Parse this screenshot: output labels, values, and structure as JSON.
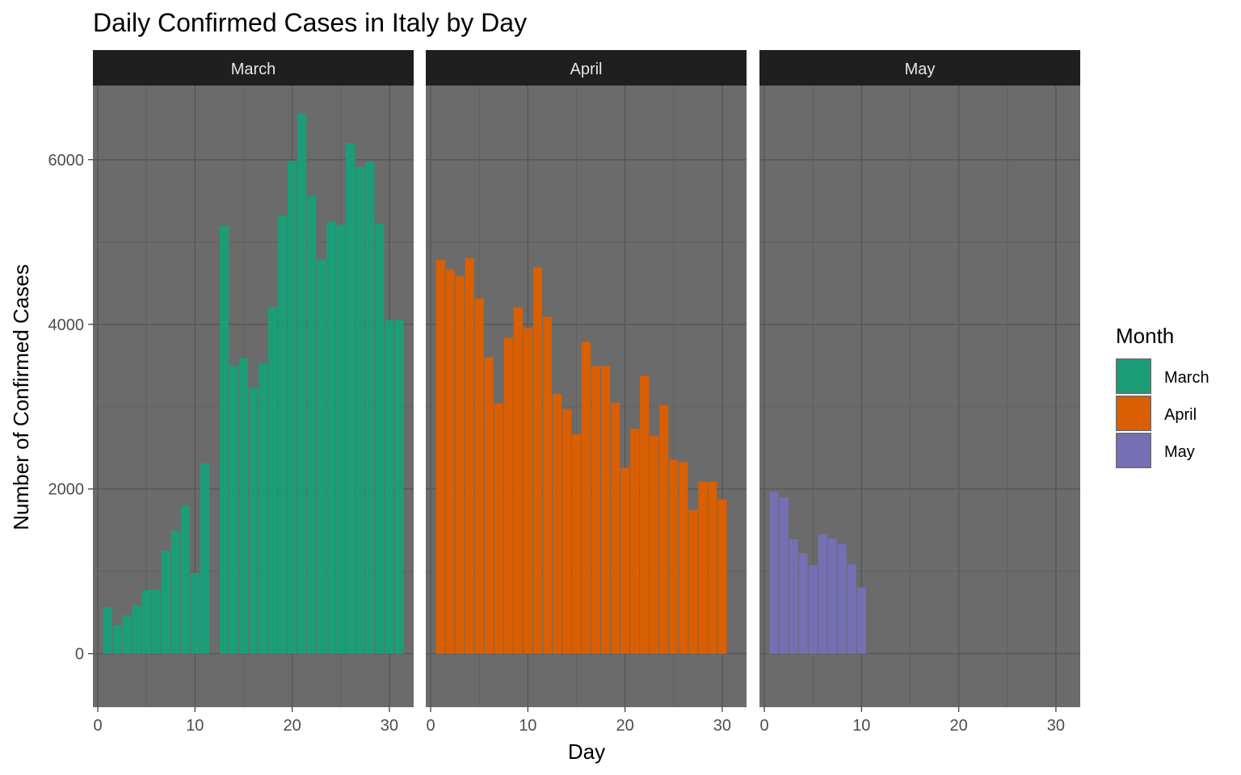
{
  "chart_data": {
    "type": "bar",
    "title": "Daily Confirmed Cases in Italy by Day",
    "xlabel": "Day",
    "ylabel": "Number of Confirmed Cases",
    "xlim": [
      -0.5,
      32.5
    ],
    "ylim": [
      -650,
      6900
    ],
    "x_ticks": [
      0,
      10,
      20,
      30
    ],
    "y_ticks": [
      0,
      2000,
      4000,
      6000
    ],
    "grid": true,
    "legend": {
      "title": "Month",
      "position": "right",
      "entries": [
        "March",
        "April",
        "May"
      ]
    },
    "colors": {
      "March": "#1b9e77",
      "April": "#d95f02",
      "May": "#7570b3",
      "panel_background": "#6b6b6b",
      "strip_background": "#1f1f1f"
    },
    "panels": [
      {
        "name": "March",
        "days": [
          1,
          2,
          3,
          4,
          5,
          6,
          7,
          8,
          9,
          10,
          11,
          12,
          13,
          14,
          15,
          16,
          17,
          18,
          19,
          20,
          21,
          22,
          23,
          24,
          25,
          26,
          27,
          28,
          29,
          30,
          31
        ],
        "values": [
          566,
          342,
          466,
          587,
          769,
          778,
          1247,
          1492,
          1797,
          977,
          2313,
          0,
          5198,
          3497,
          3590,
          3233,
          3526,
          4207,
          5322,
          5986,
          6557,
          5560,
          4789,
          5249,
          5210,
          6203,
          5909,
          5974,
          5217,
          4050,
          4053
        ]
      },
      {
        "name": "April",
        "days": [
          1,
          2,
          3,
          4,
          5,
          6,
          7,
          8,
          9,
          10,
          11,
          12,
          13,
          14,
          15,
          16,
          17,
          18,
          19,
          20,
          21,
          22,
          23,
          24,
          25,
          26,
          27,
          28,
          29,
          30
        ],
        "values": [
          4782,
          4668,
          4585,
          4805,
          4316,
          3599,
          3039,
          3836,
          4204,
          3951,
          4694,
          4092,
          3153,
          2972,
          2667,
          3786,
          3493,
          3491,
          3047,
          2256,
          2729,
          3370,
          2646,
          3021,
          2357,
          2324,
          1739,
          2091,
          2086,
          1872
        ]
      },
      {
        "name": "May",
        "days": [
          1,
          2,
          3,
          4,
          5,
          6,
          7,
          8,
          9,
          10
        ],
        "values": [
          1965,
          1900,
          1389,
          1221,
          1075,
          1444,
          1401,
          1327,
          1083,
          802
        ]
      }
    ]
  }
}
